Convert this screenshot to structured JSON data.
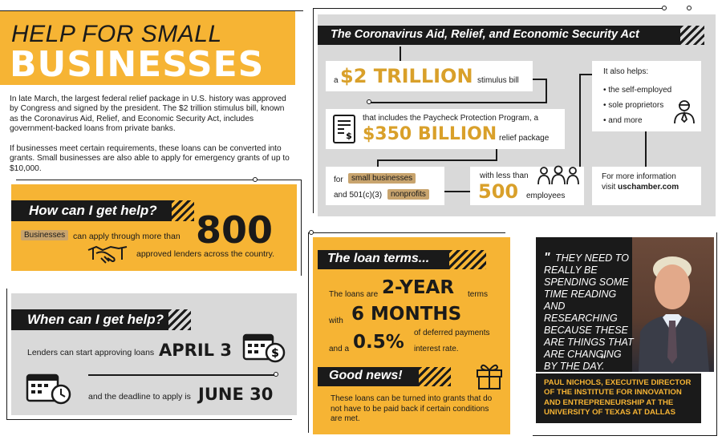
{
  "colors": {
    "accent": "#f6b434",
    "dark": "#1a1a1a",
    "panel_gray": "#d9d9d9",
    "tag": "#c8a46e"
  },
  "header": {
    "line1": "HELP FOR SMALL",
    "line2": "BUSINESSES"
  },
  "intro": {
    "p1": "In late March, the largest federal relief package in U.S. history was approved by Congress and signed by the president. The $2 trillion stimulus bill, known as the Coronavirus Aid, Relief, and Economic Security Act, includes government-backed loans from private banks.",
    "p2": "If businesses meet certain requirements, these loans can be converted into grants. Small businesses are also able to apply for emergency grants of up to $10,000."
  },
  "how": {
    "title": "How can I get help?",
    "tag": "Businesses",
    "text1": "can apply through more than",
    "number": "800",
    "text2": "approved lenders across the country.",
    "icon": "handshake-icon"
  },
  "when": {
    "title": "When can I get help?",
    "line1": "Lenders can start approving loans",
    "date1": "APRIL 3",
    "line2": "and the deadline to apply is",
    "date2": "JUNE 30",
    "icon1": "calendar-dollar-icon",
    "icon2": "calendar-clock-icon"
  },
  "cares": {
    "title": "The Coronavirus Aid, Relief, and Economic Security Act",
    "a": "a",
    "amount1": "$2 TRILLION",
    "stim": "stimulus bill",
    "ppp": "that includes the Paycheck Protection Program, a",
    "amount2": "$350 BILLION",
    "relief": "relief package",
    "for": "for",
    "tag1": "small businesses",
    "and": "and 501(c)(3)",
    "tag2": "nonprofits",
    "less": "with less than",
    "num": "500",
    "emp": "employees",
    "also": "It also helps:",
    "helps": [
      "self-employed",
      "sole proprietors",
      "and more"
    ],
    "more1": "For more information",
    "more2": "visit",
    "url": "uschamber.com",
    "doc_icon": "document-dollar-icon",
    "people_icon": "people-icon",
    "worker_icon": "worker-icon"
  },
  "terms": {
    "title": "The loan terms...",
    "l1a": "The loans are",
    "l1b": "2-YEAR",
    "l1c": "terms",
    "l2a": "with",
    "l2b": "6 MONTHS",
    "l2c": "of deferred payments",
    "l3a": "and a",
    "l3b": "0.5%",
    "l3c": "interest rate.",
    "good": "Good news!",
    "note": "These loans can be turned into grants that do not have to be paid back if certain conditions are met.",
    "gift_icon": "gift-icon"
  },
  "quote": {
    "text": "THEY NEED TO REALLY BE SPENDING SOME TIME READING AND RESEARCHING BECAUSE THESE ARE THINGS THAT ARE CHANGING BY THE DAY.",
    "open": "\"",
    "close": "\"",
    "attribution": "PAUL NICHOLS, EXECUTIVE DIRECTOR OF THE INSTITUTE FOR INNOVATION AND ENTREPRENEURSHIP AT THE UNIVERSITY OF TEXAS AT DALLAS",
    "photo_icon": "portrait-photo"
  }
}
